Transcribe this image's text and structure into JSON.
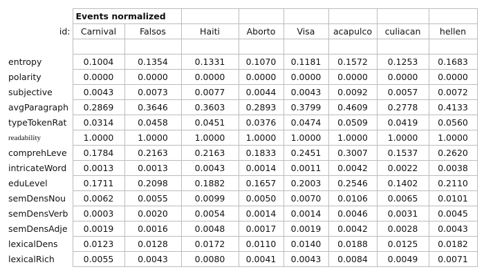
{
  "table": {
    "title": "Events normalized",
    "id_label": "id:",
    "columns": [
      "Carnival",
      "Falsos",
      "Haiti",
      "Aborto",
      "Visa",
      "acapulco",
      "culiacan",
      "hellen"
    ],
    "rows": [
      {
        "label": "entropy",
        "values": [
          "0.1004",
          "0.1354",
          "0.1331",
          "0.1070",
          "0.1181",
          "0.1572",
          "0.1253",
          "0.1683"
        ]
      },
      {
        "label": "polarity",
        "values": [
          "0.0000",
          "0.0000",
          "0.0000",
          "0.0000",
          "0.0000",
          "0.0000",
          "0.0000",
          "0.0000"
        ]
      },
      {
        "label": "subjective",
        "values": [
          "0.0043",
          "0.0073",
          "0.0077",
          "0.0044",
          "0.0043",
          "0.0092",
          "0.0057",
          "0.0072"
        ]
      },
      {
        "label": "avgParagraph",
        "values": [
          "0.2869",
          "0.3646",
          "0.3603",
          "0.2893",
          "0.3799",
          "0.4609",
          "0.2778",
          "0.4133"
        ]
      },
      {
        "label": "typeTokenRat",
        "values": [
          "0.0314",
          "0.0458",
          "0.0451",
          "0.0376",
          "0.0474",
          "0.0509",
          "0.0419",
          "0.0560"
        ]
      },
      {
        "label": "readability",
        "values": [
          "1.0000",
          "1.0000",
          "1.0000",
          "1.0000",
          "1.0000",
          "1.0000",
          "1.0000",
          "1.0000"
        ]
      },
      {
        "label": "comprehLeve",
        "values": [
          "0.1784",
          "0.2163",
          "0.2163",
          "0.1833",
          "0.2451",
          "0.3007",
          "0.1537",
          "0.2620"
        ]
      },
      {
        "label": "intricateWord",
        "values": [
          "0.0013",
          "0.0013",
          "0.0043",
          "0.0014",
          "0.0011",
          "0.0042",
          "0.0022",
          "0.0038"
        ]
      },
      {
        "label": "eduLevel",
        "values": [
          "0.1711",
          "0.2098",
          "0.1882",
          "0.1657",
          "0.2003",
          "0.2546",
          "0.1402",
          "0.2110"
        ]
      },
      {
        "label": "semDensNou",
        "values": [
          "0.0062",
          "0.0055",
          "0.0099",
          "0.0050",
          "0.0070",
          "0.0106",
          "0.0065",
          "0.0101"
        ]
      },
      {
        "label": "semDensVerb",
        "values": [
          "0.0003",
          "0.0020",
          "0.0054",
          "0.0014",
          "0.0014",
          "0.0046",
          "0.0031",
          "0.0045"
        ]
      },
      {
        "label": "semDensAdje",
        "values": [
          "0.0019",
          "0.0016",
          "0.0048",
          "0.0017",
          "0.0019",
          "0.0042",
          "0.0028",
          "0.0043"
        ]
      },
      {
        "label": "lexicalDens",
        "values": [
          "0.0123",
          "0.0128",
          "0.0172",
          "0.0110",
          "0.0140",
          "0.0188",
          "0.0125",
          "0.0182"
        ]
      },
      {
        "label": "lexicalRich",
        "values": [
          "0.0055",
          "0.0043",
          "0.0080",
          "0.0041",
          "0.0043",
          "0.0084",
          "0.0049",
          "0.0071"
        ]
      }
    ]
  }
}
